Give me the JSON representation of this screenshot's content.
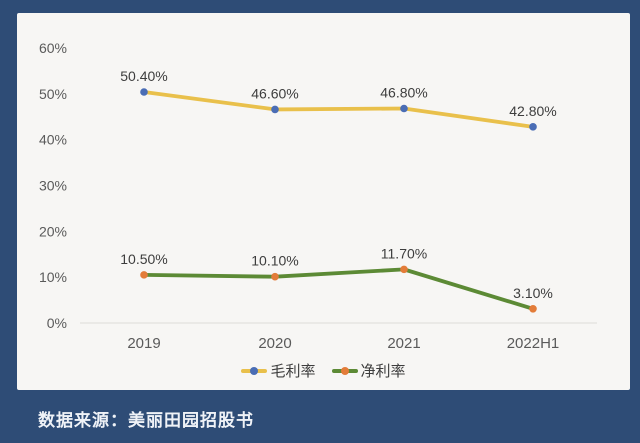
{
  "page": {
    "background_color": "#2E4C76",
    "card_background": "#F7F6F4"
  },
  "footer": {
    "source_text": "数据来源：美丽田园招股书"
  },
  "chart_data": {
    "type": "line",
    "categories": [
      "2019",
      "2020",
      "2021",
      "2022H1"
    ],
    "series": [
      {
        "name": "毛利率",
        "values": [
          50.4,
          46.6,
          46.8,
          42.8
        ],
        "labels": [
          "50.40%",
          "46.60%",
          "46.80%",
          "42.80%"
        ],
        "line_color": "#E9C04B",
        "marker_color": "#4A6DB5"
      },
      {
        "name": "净利率",
        "values": [
          10.5,
          10.1,
          11.7,
          3.1
        ],
        "labels": [
          "10.50%",
          "10.10%",
          "11.70%",
          "3.10%"
        ],
        "line_color": "#5C8A35",
        "marker_color": "#E37C39"
      }
    ],
    "ylim": [
      0,
      60
    ],
    "y_ticks": [
      "0%",
      "10%",
      "20%",
      "30%",
      "40%",
      "50%",
      "60%"
    ],
    "tick_color": "#5A5A5A",
    "data_label_color": "#3D3D3D",
    "axis_line_color": "#DDDCD8",
    "grid": false,
    "legend_position": "bottom"
  }
}
